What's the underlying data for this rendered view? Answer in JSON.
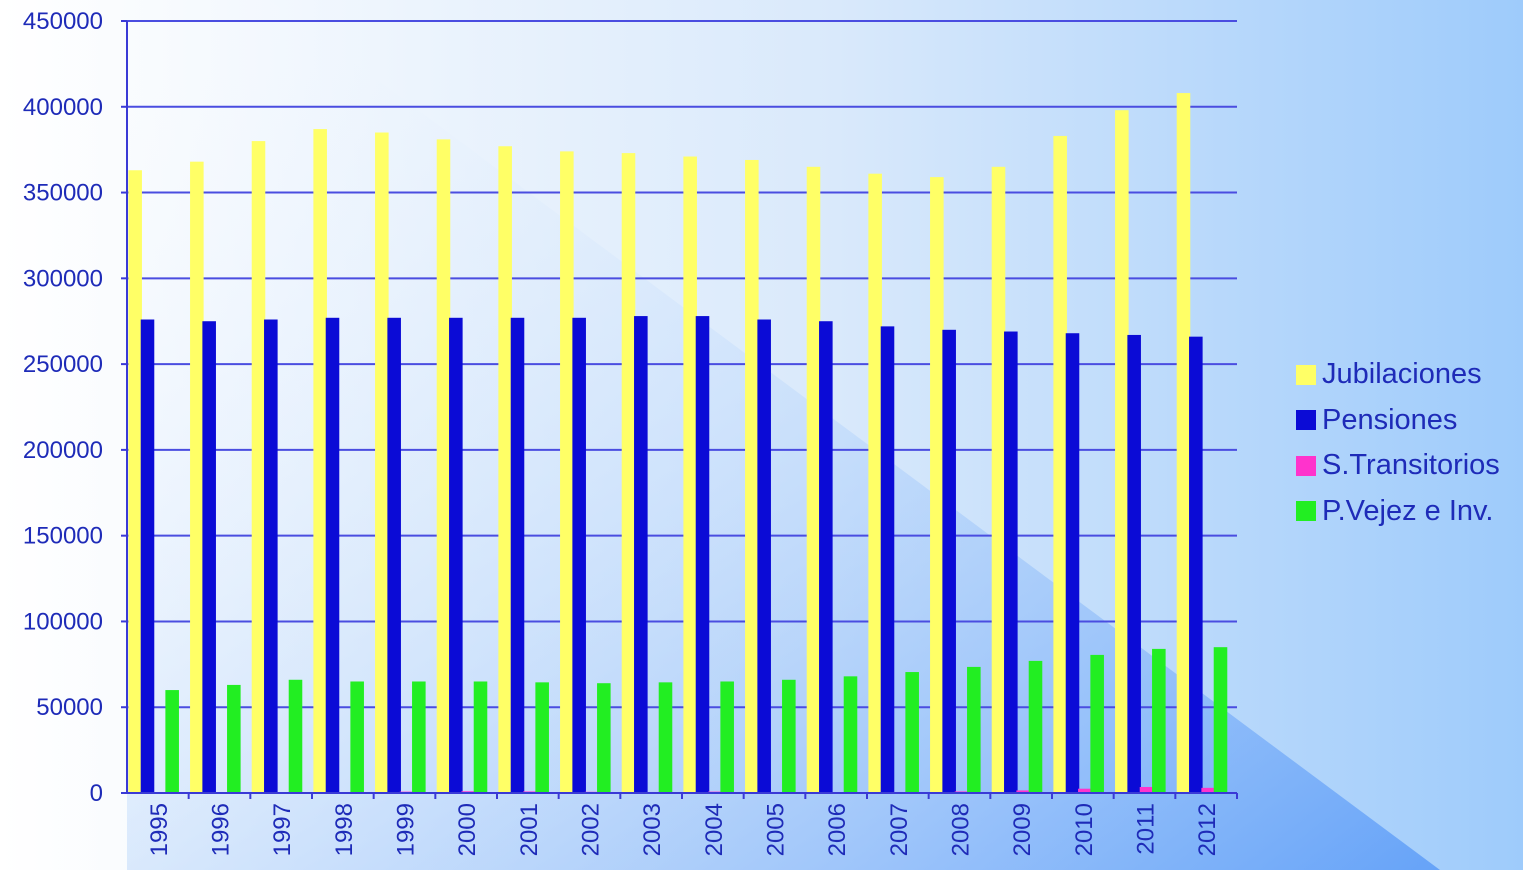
{
  "chart_data": {
    "type": "bar",
    "title": "",
    "xlabel": "",
    "ylabel": "",
    "ylim": [
      0,
      450000
    ],
    "yticks": [
      0,
      50000,
      100000,
      150000,
      200000,
      250000,
      300000,
      350000,
      400000,
      450000
    ],
    "grid": true,
    "legend_position": "right",
    "categories": [
      "1995",
      "1996",
      "1997",
      "1998",
      "1999",
      "2000",
      "2001",
      "2002",
      "2003",
      "2004",
      "2005",
      "2006",
      "2007",
      "2008",
      "2009",
      "2010",
      "2011",
      "2012"
    ],
    "series": [
      {
        "name": "Jubilaciones",
        "color": "#ffff66",
        "values": [
          363000,
          368000,
          380000,
          387000,
          385000,
          381000,
          377000,
          374000,
          373000,
          371000,
          369000,
          365000,
          361000,
          359000,
          365000,
          383000,
          398000,
          408000
        ]
      },
      {
        "name": "Pensiones",
        "color": "#0b0bd6",
        "values": [
          276000,
          275000,
          276000,
          277000,
          277000,
          277000,
          277000,
          277000,
          278000,
          278000,
          276000,
          275000,
          272000,
          270000,
          269000,
          268000,
          267000,
          266000
        ]
      },
      {
        "name": "S.Transitorios",
        "color": "#ff33cc",
        "values": [
          200,
          300,
          400,
          500,
          800,
          1000,
          900,
          700,
          600,
          800,
          600,
          500,
          600,
          900,
          1500,
          2500,
          3500,
          3000
        ]
      },
      {
        "name": "P.Vejez e Inv.",
        "color": "#22ee22",
        "values": [
          60000,
          63000,
          66000,
          65000,
          65000,
          65000,
          64500,
          64000,
          64500,
          65000,
          66000,
          68000,
          70500,
          73500,
          77000,
          80500,
          84000,
          85000
        ]
      }
    ]
  }
}
